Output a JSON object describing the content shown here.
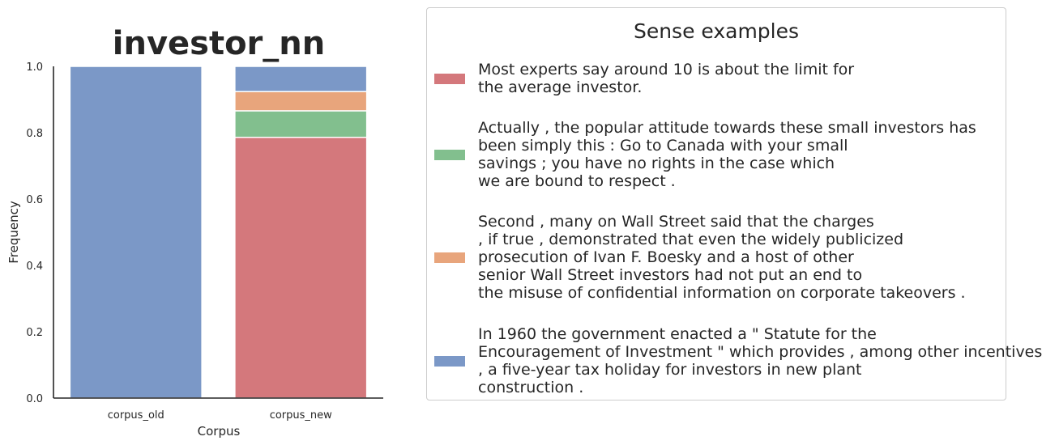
{
  "chart_data": {
    "type": "bar",
    "stacked": true,
    "title": "investor_nn",
    "xlabel": "Corpus",
    "ylabel": "Frequency",
    "categories": [
      "corpus_old",
      "corpus_new"
    ],
    "ylim": [
      0,
      1.0
    ],
    "yticks": [
      "0.0",
      "0.2",
      "0.4",
      "0.6",
      "0.8",
      "1.0"
    ],
    "grid": false,
    "legend_position": "right",
    "series": [
      {
        "color": "#d4787c",
        "values": [
          0,
          0.786
        ]
      },
      {
        "color": "#82bf8e",
        "values": [
          0,
          0.08
        ]
      },
      {
        "color": "#e8a57c",
        "values": [
          0,
          0.058
        ]
      },
      {
        "color": "#7b98c7",
        "values": [
          1.0,
          0.076
        ]
      }
    ]
  },
  "legend": {
    "title": "Sense examples",
    "entries": [
      {
        "color": "#d4787c",
        "text": "Most experts say around 10 is about the limit for\nthe average investor."
      },
      {
        "color": "#82bf8e",
        "text": "Actually , the popular attitude towards these small investors has\nbeen simply this : Go to Canada with your small\nsavings ; you have no rights in the case which\nwe are bound to respect ."
      },
      {
        "color": "#e8a57c",
        "text": "Second , many on Wall Street said that the charges\n, if true , demonstrated that even the widely publicized\nprosecution of Ivan F. Boesky and a host of other\nsenior Wall Street investors had not put an end to\nthe misuse of confidential information on corporate takeovers ."
      },
      {
        "color": "#7b98c7",
        "text": "In 1960 the government enacted a \" Statute for the\nEncouragement of Investment \" which provides , among other incentives\n, a five-year tax holiday for investors in new plant\nconstruction ."
      }
    ]
  }
}
